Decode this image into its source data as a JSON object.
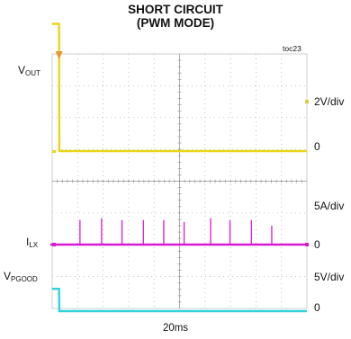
{
  "chart_data": {
    "type": "line",
    "title": "SHORT CIRCUIT",
    "subtitle": "(PWM MODE)",
    "figure_id": "toc23",
    "timebase": "20ms",
    "grid": true,
    "x": [
      0,
      0.27,
      0.28,
      1,
      2,
      3,
      4,
      5,
      6,
      7,
      8,
      9,
      10
    ],
    "series": [
      {
        "label_main": "V",
        "label_sub": "OUT",
        "scale": "2V/div",
        "zero_label": "0",
        "color": "#e8d619",
        "values": [
          4.0,
          4.0,
          0.0,
          0.0,
          0.0,
          0.0,
          0.0,
          0.0,
          0.0,
          0.0,
          0.0,
          0.0,
          0.0
        ]
      },
      {
        "label_main": "I",
        "label_sub": "LX",
        "scale": "5A/div",
        "zero_label": "0",
        "color": "#d61bd0",
        "pulse_x": [
          1.09,
          1.94,
          2.74,
          3.58,
          4.38,
          5.18,
          6.22,
          6.98,
          7.82,
          8.62
        ],
        "pulse_peak_divs": [
          1.3,
          1.4,
          1.3,
          1.3,
          1.3,
          1.2,
          1.4,
          1.3,
          1.3,
          1.0
        ]
      },
      {
        "label_main": "V",
        "label_sub": "PGOOD",
        "scale": "5V/div",
        "zero_label": "0",
        "color": "#2fd3d9",
        "values": [
          0.7,
          0.7,
          0.0,
          0.0,
          0.0,
          0.0,
          0.0,
          0.0,
          0.0,
          0.0,
          0.0,
          0.0,
          0.0
        ]
      }
    ]
  }
}
